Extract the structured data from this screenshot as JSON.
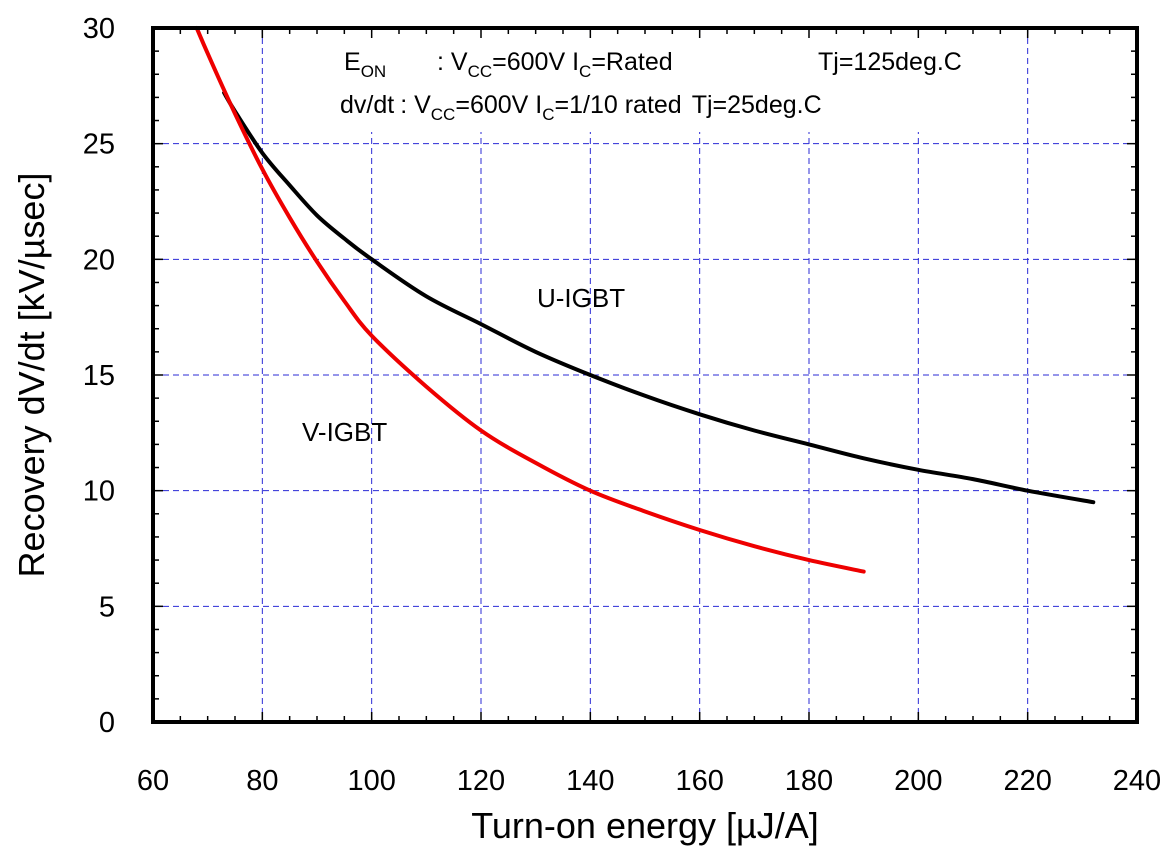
{
  "chart_data": {
    "type": "line",
    "xlabel": "Turn-on energy [µJ/A]",
    "ylabel": "Recovery dV/dt [kV/µsec]",
    "xlim": [
      60,
      240
    ],
    "ylim": [
      0,
      30
    ],
    "x_ticks": [
      "60",
      "80",
      "100",
      "120",
      "140",
      "160",
      "180",
      "200",
      "220",
      "240"
    ],
    "y_ticks": [
      "0",
      "5",
      "10",
      "15",
      "20",
      "25",
      "30"
    ],
    "grid": true,
    "conditions": {
      "eon": {
        "label": "E",
        "label_sub": "ON",
        "sep": ": V",
        "vcc_sub": "CC",
        "vcc_value": "=600V I",
        "ic_sub": "C",
        "ic_value": "=Rated",
        "tj": "Tj=125deg.C"
      },
      "dvdt": {
        "label": "dv/dt",
        "sep": ": V",
        "vcc_sub": "CC",
        "vcc_value": "=600V I",
        "ic_sub": "C",
        "ic_value": "=1/10 rated",
        "tj": "Tj=25deg.C"
      }
    },
    "series": [
      {
        "name": "U-IGBT",
        "color": "#000000",
        "x": [
          73,
          75,
          80,
          85,
          90,
          95,
          100,
          110,
          120,
          130,
          140,
          150,
          160,
          170,
          180,
          190,
          200,
          210,
          220,
          232
        ],
        "y": [
          27.2,
          26.4,
          24.6,
          23.2,
          21.9,
          20.9,
          20.0,
          18.4,
          17.2,
          16.0,
          15.0,
          14.1,
          13.3,
          12.6,
          12.0,
          11.4,
          10.9,
          10.5,
          10.0,
          9.5
        ]
      },
      {
        "name": "V-IGBT",
        "color": "#ee0000",
        "x": [
          68,
          70,
          75,
          80,
          85,
          90,
          95,
          100,
          110,
          120,
          130,
          140,
          150,
          160,
          170,
          180,
          190
        ],
        "y": [
          30.0,
          28.9,
          26.3,
          23.9,
          21.8,
          19.9,
          18.2,
          16.7,
          14.5,
          12.6,
          11.2,
          10.0,
          9.1,
          8.3,
          7.6,
          7.0,
          6.5
        ]
      }
    ]
  }
}
